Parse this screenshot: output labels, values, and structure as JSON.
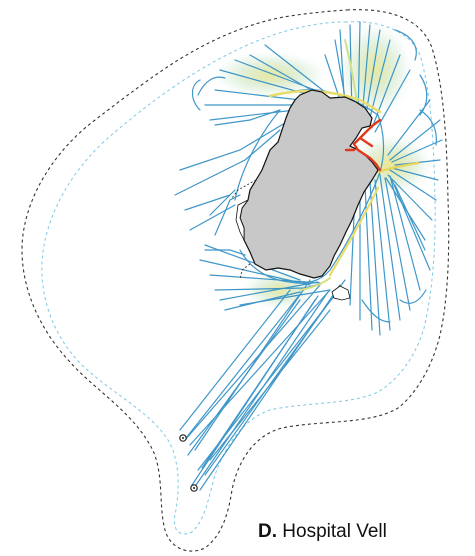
{
  "panel": {
    "letter": "D.",
    "title": "Hospital Vell"
  },
  "colors": {
    "background": "#ffffff",
    "outer_boundary": "#333333",
    "inner_boundary": "#7ec8e3",
    "trajectory_low": "#2b8cc4",
    "trajectory_mid": "#8fd0b0",
    "trajectory_high": "#f0e070",
    "trajectory_peak": "#e03a1e",
    "urban_core_fill": "#c8c8c8",
    "urban_core_stroke": "#111111"
  },
  "icons": {
    "location_marker_1": "ringed-point-icon",
    "location_marker_2": "ringed-point-icon"
  }
}
